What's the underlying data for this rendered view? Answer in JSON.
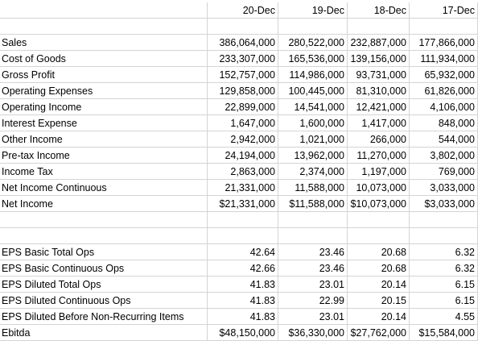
{
  "headers": [
    "",
    "20-Dec",
    "19-Dec",
    "18-Dec",
    "17-Dec"
  ],
  "rows": [
    {
      "label": "",
      "values": [
        "",
        "",
        "",
        ""
      ]
    },
    {
      "label": "Sales",
      "values": [
        "386,064,000",
        "280,522,000",
        "232,887,000",
        "177,866,000"
      ]
    },
    {
      "label": "Cost of Goods",
      "values": [
        "233,307,000",
        "165,536,000",
        "139,156,000",
        "111,934,000"
      ]
    },
    {
      "label": "Gross Profit",
      "values": [
        "152,757,000",
        "114,986,000",
        "93,731,000",
        "65,932,000"
      ]
    },
    {
      "label": "Operating Expenses",
      "values": [
        "129,858,000",
        "100,445,000",
        "81,310,000",
        "61,826,000"
      ]
    },
    {
      "label": "Operating Income",
      "values": [
        "22,899,000",
        "14,541,000",
        "12,421,000",
        "4,106,000"
      ]
    },
    {
      "label": "Interest Expense",
      "values": [
        "1,647,000",
        "1,600,000",
        "1,417,000",
        "848,000"
      ]
    },
    {
      "label": "Other Income",
      "values": [
        "2,942,000",
        "1,021,000",
        "266,000",
        "544,000"
      ]
    },
    {
      "label": "Pre-tax Income",
      "values": [
        "24,194,000",
        "13,962,000",
        "11,270,000",
        "3,802,000"
      ]
    },
    {
      "label": "Income Tax",
      "values": [
        "2,863,000",
        "2,374,000",
        "1,197,000",
        "769,000"
      ]
    },
    {
      "label": "Net Income Continuous",
      "values": [
        "21,331,000",
        "11,588,000",
        "10,073,000",
        "3,033,000"
      ]
    },
    {
      "label": "Net Income",
      "values": [
        "$21,331,000",
        "$11,588,000",
        "$10,073,000",
        "$3,033,000"
      ]
    },
    {
      "label": "",
      "values": [
        "",
        "",
        "",
        ""
      ]
    },
    {
      "label": "",
      "values": [
        "",
        "",
        "",
        ""
      ]
    },
    {
      "label": "EPS Basic Total Ops",
      "values": [
        "42.64",
        "23.46",
        "20.68",
        "6.32"
      ]
    },
    {
      "label": "EPS Basic Continuous Ops",
      "values": [
        "42.66",
        "23.46",
        "20.68",
        "6.32"
      ]
    },
    {
      "label": "EPS Diluted Total Ops",
      "values": [
        "41.83",
        "23.01",
        "20.14",
        "6.15"
      ]
    },
    {
      "label": "EPS Diluted Continuous Ops",
      "values": [
        "41.83",
        "22.99",
        "20.15",
        "6.15"
      ]
    },
    {
      "label": "EPS Diluted Before Non-Recurring Items",
      "values": [
        "41.83",
        "23.01",
        "20.14",
        "4.55"
      ]
    },
    {
      "label": "Ebitda",
      "values": [
        "$48,150,000",
        "$36,330,000",
        "$27,762,000",
        "$15,584,000"
      ]
    }
  ]
}
